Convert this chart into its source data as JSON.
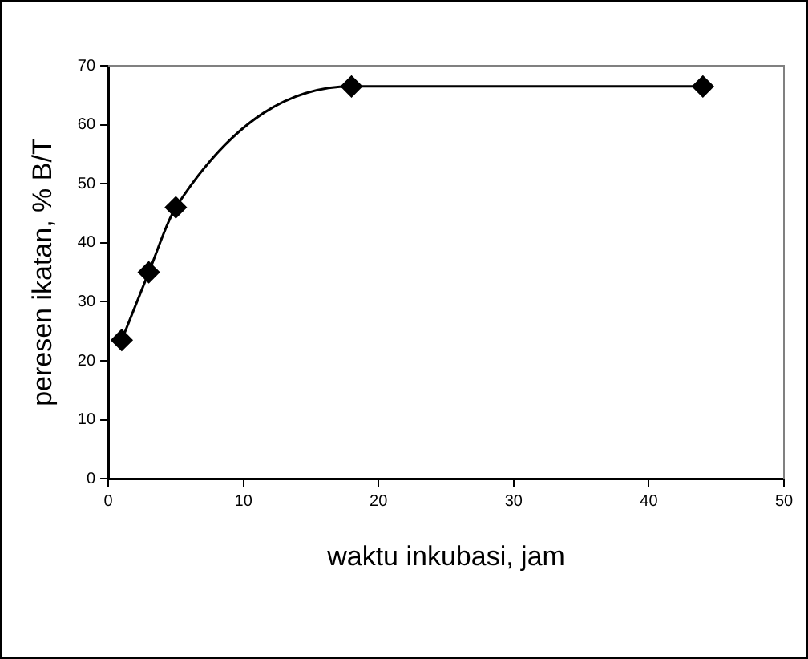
{
  "chart_data": {
    "type": "line",
    "xlabel": "waktu inkubasi, jam",
    "ylabel": "peresen ikatan, % B/T",
    "x": [
      1,
      3,
      5,
      18,
      44
    ],
    "series": [
      {
        "color": "#000000",
        "values": [
          23.5,
          35,
          46,
          66.5,
          66.5
        ]
      }
    ],
    "xlim": [
      0,
      50
    ],
    "xticks": [
      0,
      10,
      20,
      30,
      40,
      50
    ],
    "ylim": [
      0,
      70
    ],
    "yticks": [
      0,
      10,
      20,
      30,
      40,
      50,
      60,
      70
    ],
    "grid": false,
    "legend": false,
    "marker": "diamond",
    "line_style": "solid"
  }
}
